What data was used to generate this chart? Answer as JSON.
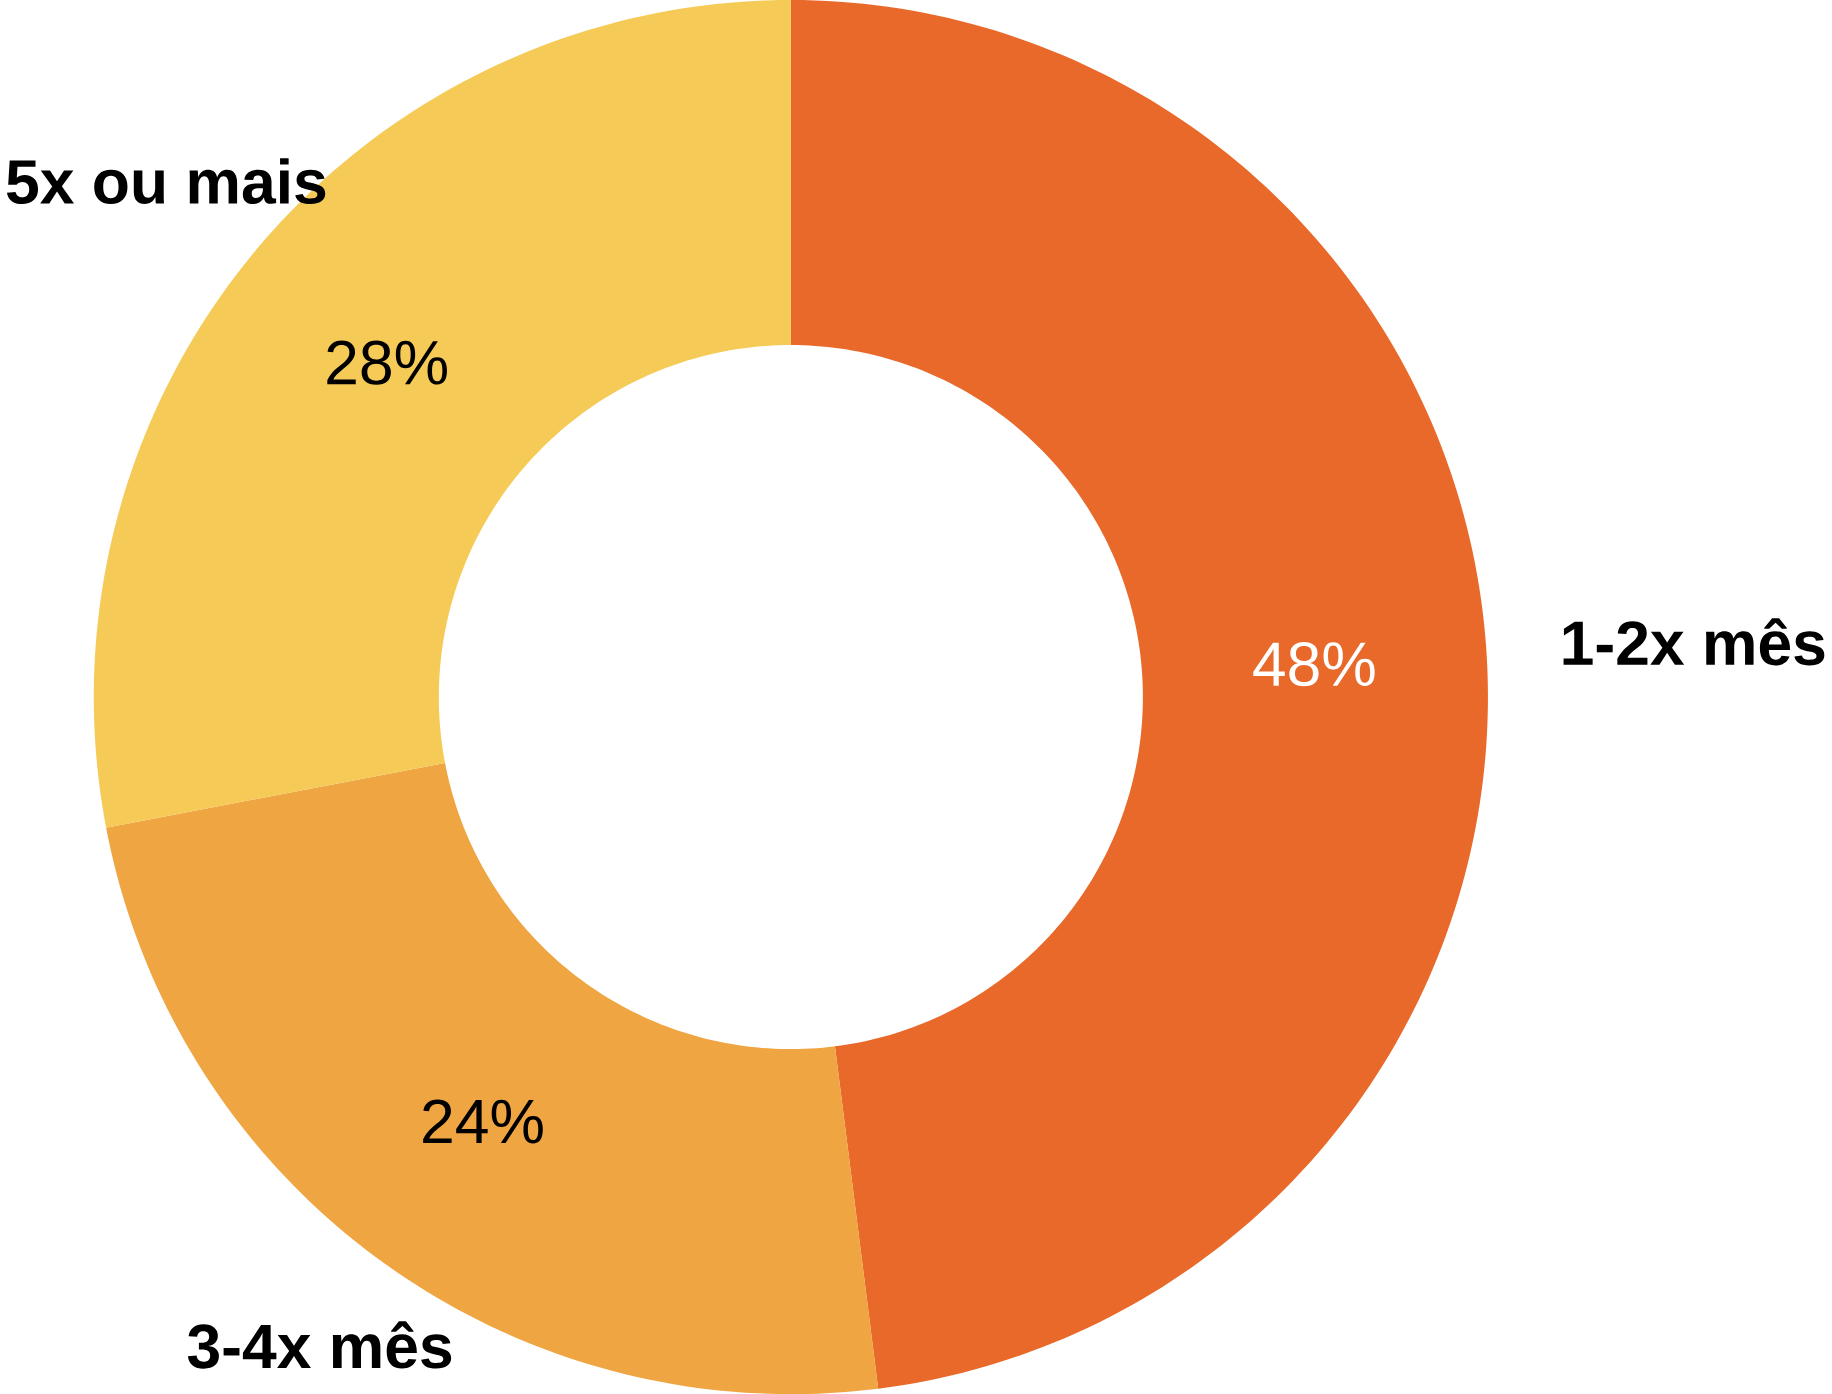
{
  "chart_data": {
    "type": "donut",
    "categories": [
      "1-2x mês",
      "3-4x mês",
      "5x ou mais"
    ],
    "values": [
      48,
      24,
      28
    ],
    "value_labels": [
      "48%",
      "24%",
      "28%"
    ],
    "colors": [
      "#e8692a",
      "#eea542",
      "#f5ca56"
    ]
  }
}
